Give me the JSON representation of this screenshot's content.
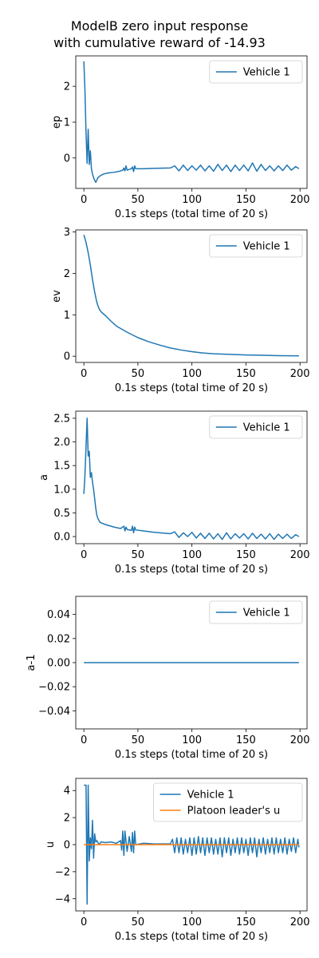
{
  "figure": {
    "title_line1": "ModelB zero input response",
    "title_line2": "with cumulative reward of -14.93"
  },
  "colors": {
    "series1": "#1f77b4",
    "series2": "#ff7f0e"
  },
  "chart_data": [
    {
      "type": "line",
      "ylabel": "ep",
      "xlabel": "0.1s steps (total time of 20 s)",
      "xlim": [
        -7.5,
        206.5
      ],
      "ylim": [
        -0.85,
        2.85
      ],
      "xticks": [
        0,
        50,
        100,
        150,
        200
      ],
      "yticks": [
        0,
        1,
        2
      ],
      "grid": false,
      "legend": "top-right",
      "series": [
        {
          "name": "Vehicle 1",
          "color": "#1f77b4",
          "points": [
            [
              0,
              2.7
            ],
            [
              1,
              1.9
            ],
            [
              2,
              0.7
            ],
            [
              3,
              -0.15
            ],
            [
              4,
              0.8
            ],
            [
              5,
              -0.18
            ],
            [
              6,
              0.2
            ],
            [
              7,
              -0.3
            ],
            [
              8,
              -0.45
            ],
            [
              9,
              -0.55
            ],
            [
              10,
              -0.62
            ],
            [
              11,
              -0.68
            ],
            [
              12,
              -0.62
            ],
            [
              13,
              -0.55
            ],
            [
              15,
              -0.5
            ],
            [
              18,
              -0.45
            ],
            [
              22,
              -0.42
            ],
            [
              28,
              -0.4
            ],
            [
              33,
              -0.37
            ],
            [
              36,
              -0.34
            ],
            [
              37,
              -0.28
            ],
            [
              38,
              -0.36
            ],
            [
              39,
              -0.22
            ],
            [
              40,
              -0.34
            ],
            [
              42,
              -0.32
            ],
            [
              44,
              -0.3
            ],
            [
              45,
              -0.25
            ],
            [
              46,
              -0.38
            ],
            [
              47,
              -0.22
            ],
            [
              48,
              -0.3
            ],
            [
              55,
              -0.3
            ],
            [
              65,
              -0.29
            ],
            [
              80,
              -0.28
            ],
            [
              84,
              -0.22
            ],
            [
              88,
              -0.36
            ],
            [
              92,
              -0.2
            ],
            [
              96,
              -0.35
            ],
            [
              100,
              -0.22
            ],
            [
              104,
              -0.34
            ],
            [
              108,
              -0.2
            ],
            [
              112,
              -0.36
            ],
            [
              116,
              -0.22
            ],
            [
              120,
              -0.37
            ],
            [
              124,
              -0.18
            ],
            [
              128,
              -0.35
            ],
            [
              132,
              -0.2
            ],
            [
              136,
              -0.38
            ],
            [
              140,
              -0.2
            ],
            [
              144,
              -0.35
            ],
            [
              148,
              -0.2
            ],
            [
              152,
              -0.36
            ],
            [
              156,
              -0.14
            ],
            [
              160,
              -0.37
            ],
            [
              164,
              -0.18
            ],
            [
              168,
              -0.35
            ],
            [
              172,
              -0.22
            ],
            [
              176,
              -0.36
            ],
            [
              180,
              -0.22
            ],
            [
              184,
              -0.35
            ],
            [
              188,
              -0.2
            ],
            [
              192,
              -0.34
            ],
            [
              196,
              -0.24
            ],
            [
              199,
              -0.3
            ]
          ]
        }
      ]
    },
    {
      "type": "line",
      "ylabel": "ev",
      "xlabel": "0.1s steps (total time of 20 s)",
      "xlim": [
        -7.5,
        206.5
      ],
      "ylim": [
        -0.15,
        3.05
      ],
      "xticks": [
        0,
        50,
        100,
        150,
        200
      ],
      "yticks": [
        0,
        1,
        2,
        3
      ],
      "grid": false,
      "legend": "top-right",
      "series": [
        {
          "name": "Vehicle 1",
          "color": "#1f77b4",
          "points": [
            [
              0,
              2.93
            ],
            [
              2,
              2.75
            ],
            [
              4,
              2.5
            ],
            [
              6,
              2.2
            ],
            [
              8,
              1.85
            ],
            [
              10,
              1.55
            ],
            [
              12,
              1.3
            ],
            [
              14,
              1.15
            ],
            [
              16,
              1.07
            ],
            [
              20,
              0.98
            ],
            [
              25,
              0.85
            ],
            [
              30,
              0.73
            ],
            [
              40,
              0.58
            ],
            [
              50,
              0.45
            ],
            [
              60,
              0.35
            ],
            [
              70,
              0.27
            ],
            [
              80,
              0.2
            ],
            [
              90,
              0.15
            ],
            [
              100,
              0.11
            ],
            [
              110,
              0.08
            ],
            [
              120,
              0.06
            ],
            [
              130,
              0.05
            ],
            [
              140,
              0.04
            ],
            [
              150,
              0.03
            ],
            [
              160,
              0.025
            ],
            [
              170,
              0.02
            ],
            [
              180,
              0.015
            ],
            [
              190,
              0.012
            ],
            [
              199,
              0.01
            ]
          ]
        }
      ]
    },
    {
      "type": "line",
      "ylabel": "a",
      "xlabel": "0.1s steps (total time of 20 s)",
      "xlim": [
        -7.5,
        206.5
      ],
      "ylim": [
        -0.15,
        2.65
      ],
      "xticks": [
        0,
        50,
        100,
        150,
        200
      ],
      "yticks": [
        0.0,
        0.5,
        1.0,
        1.5,
        2.0,
        2.5
      ],
      "grid": false,
      "legend": "top-right",
      "series": [
        {
          "name": "Vehicle 1",
          "color": "#1f77b4",
          "points": [
            [
              0,
              0.9
            ],
            [
              1,
              1.3
            ],
            [
              2,
              1.9
            ],
            [
              3,
              2.5
            ],
            [
              4,
              1.7
            ],
            [
              5,
              1.8
            ],
            [
              6,
              1.25
            ],
            [
              7,
              1.35
            ],
            [
              8,
              1.15
            ],
            [
              9,
              1.0
            ],
            [
              10,
              0.8
            ],
            [
              11,
              0.6
            ],
            [
              12,
              0.45
            ],
            [
              13,
              0.38
            ],
            [
              15,
              0.3
            ],
            [
              18,
              0.27
            ],
            [
              22,
              0.24
            ],
            [
              28,
              0.2
            ],
            [
              34,
              0.17
            ],
            [
              37,
              0.22
            ],
            [
              38,
              0.12
            ],
            [
              39,
              0.2
            ],
            [
              40,
              0.15
            ],
            [
              44,
              0.13
            ],
            [
              45,
              0.22
            ],
            [
              46,
              0.08
            ],
            [
              47,
              0.2
            ],
            [
              48,
              0.14
            ],
            [
              55,
              0.12
            ],
            [
              65,
              0.09
            ],
            [
              80,
              0.06
            ],
            [
              84,
              0.1
            ],
            [
              88,
              -0.02
            ],
            [
              92,
              0.08
            ],
            [
              96,
              0.0
            ],
            [
              100,
              0.09
            ],
            [
              104,
              -0.03
            ],
            [
              108,
              0.07
            ],
            [
              112,
              -0.04
            ],
            [
              116,
              0.07
            ],
            [
              120,
              -0.05
            ],
            [
              124,
              0.06
            ],
            [
              128,
              -0.06
            ],
            [
              132,
              0.08
            ],
            [
              136,
              -0.05
            ],
            [
              140,
              0.06
            ],
            [
              144,
              -0.03
            ],
            [
              148,
              0.06
            ],
            [
              152,
              -0.05
            ],
            [
              156,
              0.07
            ],
            [
              160,
              -0.04
            ],
            [
              164,
              0.05
            ],
            [
              168,
              -0.05
            ],
            [
              172,
              0.06
            ],
            [
              176,
              -0.06
            ],
            [
              180,
              0.05
            ],
            [
              184,
              -0.04
            ],
            [
              188,
              0.05
            ],
            [
              192,
              -0.04
            ],
            [
              196,
              0.04
            ],
            [
              199,
              0.0
            ]
          ]
        }
      ]
    },
    {
      "type": "line",
      "ylabel": "a-1",
      "xlabel": "0.1s steps (total time of 20 s)",
      "xlim": [
        -7.5,
        206.5
      ],
      "ylim": [
        -0.055,
        0.055
      ],
      "xticks": [
        0,
        50,
        100,
        150,
        200
      ],
      "yticks": [
        -0.04,
        -0.02,
        0.0,
        0.02,
        0.04
      ],
      "ytick_labels": [
        "−0.04",
        "−0.02",
        "0.00",
        "0.02",
        "0.04"
      ],
      "grid": false,
      "legend": "top-right",
      "series": [
        {
          "name": "Vehicle 1",
          "color": "#1f77b4",
          "points": [
            [
              0,
              0
            ],
            [
              199,
              0
            ]
          ]
        }
      ]
    },
    {
      "type": "line",
      "ylabel": "u",
      "xlabel": "0.1s steps (total time of 20 s)",
      "xlim": [
        -7.5,
        206.5
      ],
      "ylim": [
        -4.9,
        4.9
      ],
      "xticks": [
        0,
        50,
        100,
        150,
        200
      ],
      "yticks": [
        -4,
        -2,
        0,
        2,
        4
      ],
      "ytick_labels": [
        "−4",
        "−2",
        "0",
        "2",
        "4"
      ],
      "grid": false,
      "legend": "top-right",
      "series": [
        {
          "name": "Vehicle 1",
          "color": "#1f77b4",
          "points": [
            [
              0,
              4.4
            ],
            [
              1,
              4.4
            ],
            [
              2,
              4.4
            ],
            [
              3,
              -4.4
            ],
            [
              4,
              4.4
            ],
            [
              5,
              -1.2
            ],
            [
              6,
              0.5
            ],
            [
              7,
              -0.3
            ],
            [
              8,
              1.8
            ],
            [
              9,
              -1.0
            ],
            [
              10,
              0.8
            ],
            [
              11,
              0.2
            ],
            [
              12,
              0.3
            ],
            [
              14,
              0.0
            ],
            [
              16,
              0.2
            ],
            [
              20,
              0.15
            ],
            [
              25,
              0.2
            ],
            [
              30,
              0.1
            ],
            [
              34,
              0.3
            ],
            [
              35,
              -0.4
            ],
            [
              36,
              1.0
            ],
            [
              37,
              -0.8
            ],
            [
              38,
              1.0
            ],
            [
              40,
              -0.5
            ],
            [
              42,
              0.6
            ],
            [
              44,
              -0.5
            ],
            [
              45,
              0.9
            ],
            [
              46,
              -0.6
            ],
            [
              47,
              1.0
            ],
            [
              48,
              0.0
            ],
            [
              55,
              0.1
            ],
            [
              65,
              0.05
            ],
            [
              80,
              0.05
            ],
            [
              82,
              0.4
            ],
            [
              84,
              -0.6
            ],
            [
              86,
              0.5
            ],
            [
              88,
              -0.6
            ],
            [
              90,
              0.5
            ],
            [
              92,
              -0.7
            ],
            [
              94,
              0.4
            ],
            [
              96,
              -0.6
            ],
            [
              98,
              0.5
            ],
            [
              100,
              -0.8
            ],
            [
              102,
              0.5
            ],
            [
              104,
              -0.7
            ],
            [
              106,
              0.6
            ],
            [
              108,
              -0.6
            ],
            [
              110,
              0.5
            ],
            [
              112,
              -0.8
            ],
            [
              114,
              0.5
            ],
            [
              116,
              -0.6
            ],
            [
              118,
              0.5
            ],
            [
              120,
              -0.7
            ],
            [
              122,
              0.4
            ],
            [
              124,
              -0.7
            ],
            [
              126,
              0.5
            ],
            [
              128,
              -0.9
            ],
            [
              130,
              0.5
            ],
            [
              132,
              -0.6
            ],
            [
              134,
              0.5
            ],
            [
              136,
              -0.8
            ],
            [
              138,
              0.4
            ],
            [
              140,
              -0.6
            ],
            [
              142,
              0.5
            ],
            [
              144,
              -0.7
            ],
            [
              146,
              0.5
            ],
            [
              148,
              -0.6
            ],
            [
              150,
              0.4
            ],
            [
              152,
              -0.8
            ],
            [
              154,
              0.5
            ],
            [
              156,
              -0.6
            ],
            [
              158,
              0.5
            ],
            [
              160,
              -0.9
            ],
            [
              162,
              0.4
            ],
            [
              164,
              -0.6
            ],
            [
              166,
              0.5
            ],
            [
              168,
              -0.7
            ],
            [
              170,
              0.4
            ],
            [
              172,
              -0.6
            ],
            [
              174,
              0.5
            ],
            [
              176,
              -0.7
            ],
            [
              178,
              0.5
            ],
            [
              180,
              -0.6
            ],
            [
              182,
              0.4
            ],
            [
              184,
              -0.6
            ],
            [
              186,
              0.5
            ],
            [
              188,
              -0.7
            ],
            [
              190,
              0.4
            ],
            [
              192,
              -0.5
            ],
            [
              194,
              0.5
            ],
            [
              196,
              -0.6
            ],
            [
              198,
              0.4
            ],
            [
              199,
              -0.2
            ]
          ]
        },
        {
          "name": "Platoon leader's u",
          "color": "#ff7f0e",
          "points": [
            [
              0,
              0
            ],
            [
              199,
              0
            ]
          ]
        }
      ]
    }
  ]
}
